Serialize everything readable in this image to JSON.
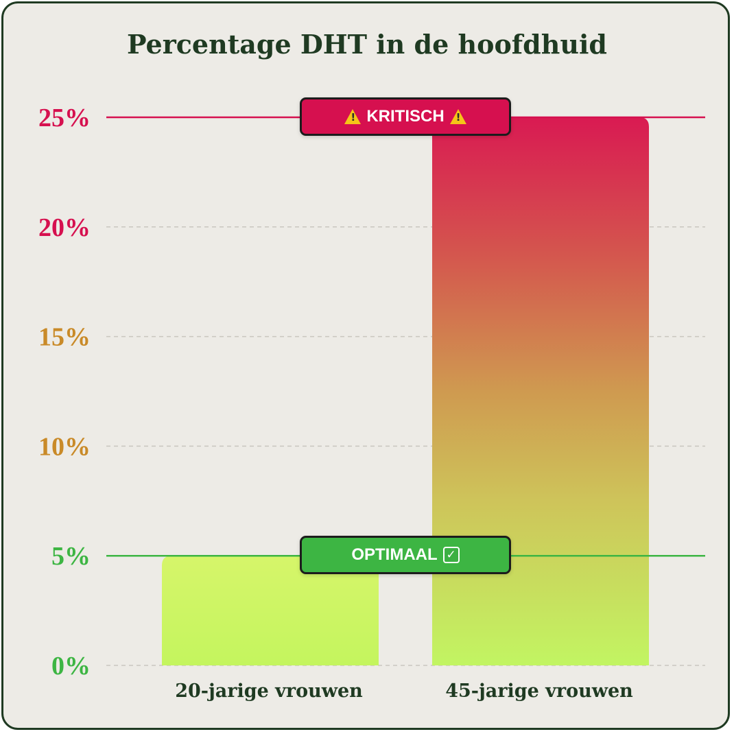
{
  "chart_data": {
    "type": "bar",
    "title": "Percentage DHT in de hoofdhuid",
    "categories": [
      "20-jarige vrouwen",
      "45-jarige vrouwen"
    ],
    "values": [
      5,
      25
    ],
    "ylim": [
      0,
      25
    ],
    "yticks": [
      "0%",
      "5%",
      "10%",
      "15%",
      "20%",
      "25%"
    ],
    "ytick_values": [
      0,
      5,
      10,
      15,
      20,
      25
    ],
    "ytick_colors": [
      "#3db543",
      "#3db543",
      "#c98a28",
      "#c98a28",
      "#d6104f",
      "#d6104f"
    ],
    "grid": true,
    "reference_lines": [
      {
        "label": "KRITISCH",
        "value": 25,
        "color": "#d6104f"
      },
      {
        "label": "OPTIMAAL",
        "value": 5,
        "color": "#3db543"
      }
    ]
  },
  "badges": {
    "critical": {
      "label": "KRITISCH",
      "icon": "warning-icon",
      "color": "#d6104f"
    },
    "optimal": {
      "label": "OPTIMAAL",
      "icon": "check-icon",
      "color": "#3db543"
    }
  }
}
